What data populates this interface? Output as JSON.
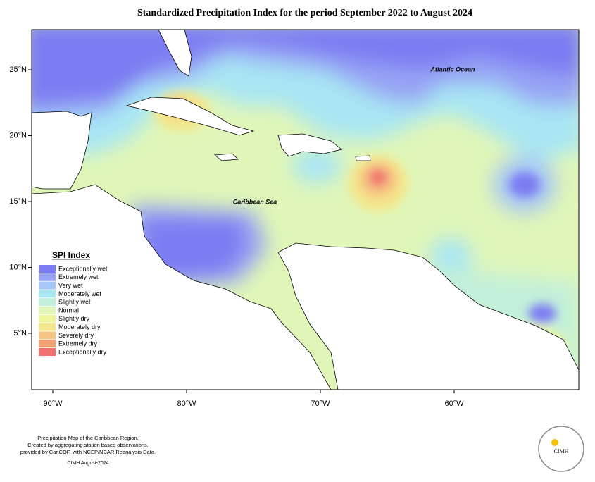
{
  "map": {
    "title": "Standardized Precipitation Index for the period September 2022 to August 2024",
    "x_ticks": [
      "90°W",
      "80°W",
      "70°W",
      "60°W"
    ],
    "y_ticks": [
      "25°N",
      "20°N",
      "15°N",
      "10°N",
      "5°N"
    ],
    "labels": [
      "Atlantic Ocean",
      "Caribbean Sea"
    ]
  },
  "legend": {
    "title": "SPI Index",
    "items": [
      {
        "label": "Exceptionally wet",
        "color": "#7b7bf2"
      },
      {
        "label": "Extremely wet",
        "color": "#98a4f4"
      },
      {
        "label": "Very wet",
        "color": "#a6c6f6"
      },
      {
        "label": "Moderately wet",
        "color": "#a8e6f4"
      },
      {
        "label": "Slightly wet",
        "color": "#c2f0da"
      },
      {
        "label": "Normal",
        "color": "#e0f6b8"
      },
      {
        "label": "Slightly dry",
        "color": "#eef59e"
      },
      {
        "label": "Moderately dry",
        "color": "#f4e68a"
      },
      {
        "label": "Severely dry",
        "color": "#f6c684"
      },
      {
        "label": "Extremely dry",
        "color": "#f4a072"
      },
      {
        "label": "Exceptionally dry",
        "color": "#f07070"
      }
    ]
  },
  "footer": {
    "lines": [
      "Precipitation Map of the Caribbean Region.",
      "Created by aggregating station based observations,",
      "provided by CariCOF, with NCEP/NCAR Reanalysis Data."
    ],
    "date": "CIMH August-2024",
    "logo": "CIMH"
  }
}
